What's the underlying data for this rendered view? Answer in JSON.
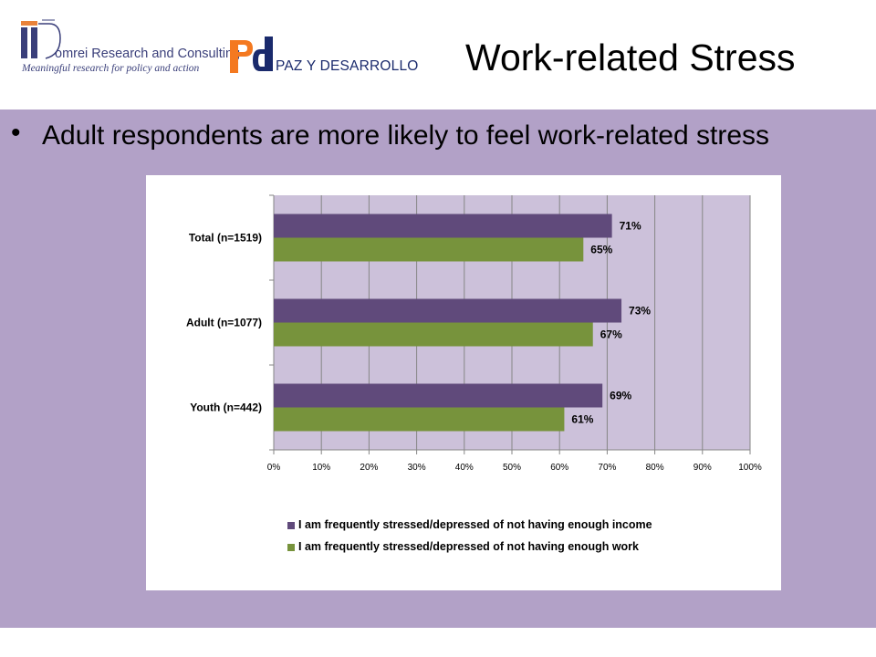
{
  "header": {
    "domrei_name": "omrei Research and Consulting",
    "domrei_tagline": "Meaningful research for policy and action",
    "pd_name": "PAZ Y DESARROLLO",
    "slide_title": "Work-related Stress"
  },
  "content": {
    "bullet": "Adult respondents are more likely to feel work-related stress"
  },
  "colors": {
    "income_series": "#604a7b",
    "work_series": "#77933c",
    "plot_background": "#ccc1da",
    "slide_background": "#b2a1c7",
    "logo_orange": "#f47920",
    "logo_navy": "#3a3f7a"
  },
  "chart_data": {
    "type": "bar",
    "orientation": "horizontal",
    "categories": [
      "Total (n=1519)",
      "Adult (n=1077)",
      "Youth (n=442)"
    ],
    "series": [
      {
        "name": "I am frequently stressed/depressed of not having enough income",
        "values": [
          71,
          73,
          69
        ],
        "labels": [
          "71%",
          "73%",
          "69%"
        ]
      },
      {
        "name": "I am frequently stressed/depressed of not having enough work",
        "values": [
          65,
          67,
          61
        ],
        "labels": [
          "65%",
          "67%",
          "61%"
        ]
      }
    ],
    "x_ticks": [
      "0%",
      "10%",
      "20%",
      "30%",
      "40%",
      "50%",
      "60%",
      "70%",
      "80%",
      "90%",
      "100%"
    ],
    "xlim": [
      0,
      100
    ],
    "grid": true,
    "legend_position": "bottom"
  }
}
